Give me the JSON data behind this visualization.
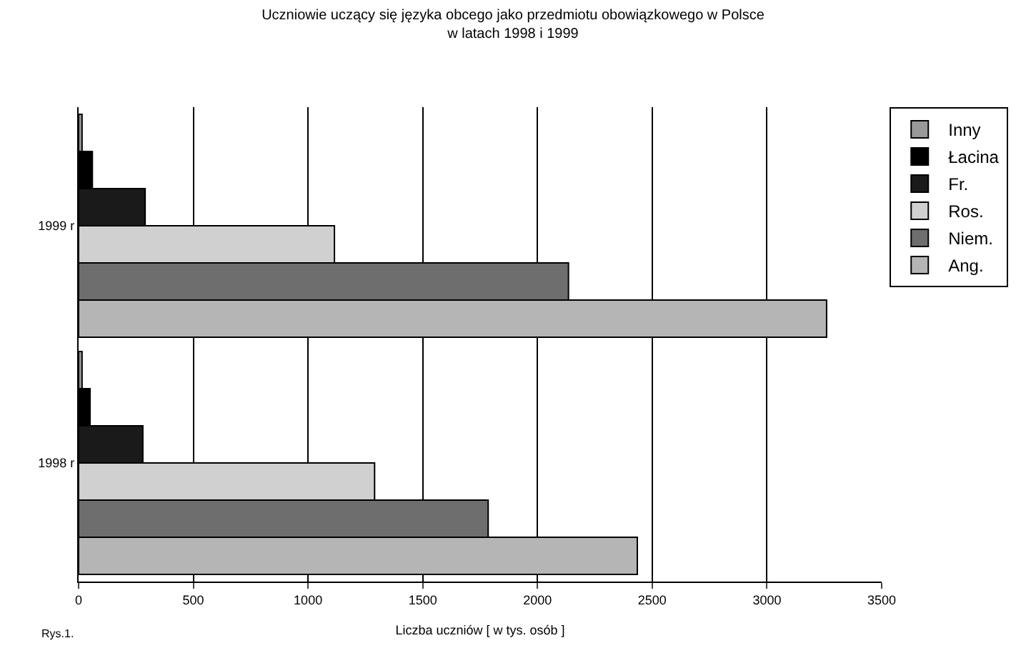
{
  "chart_data": {
    "type": "bar",
    "orientation": "horizontal",
    "title": "Uczniowie uczący się języka obcego jako przedmiotu obowiązkowego w Polsce\nw latach 1998 i 1999",
    "xlabel": "Liczba uczniów [ w tys. osób ]",
    "categories": [
      "1999 r",
      "1998 r"
    ],
    "series": [
      {
        "name": "Inny",
        "color": "#999999",
        "values": [
          15,
          15
        ]
      },
      {
        "name": "Łacina",
        "color": "#000000",
        "values": [
          60,
          50
        ]
      },
      {
        "name": "Fr.",
        "color": "#1a1a1a",
        "values": [
          290,
          280
        ]
      },
      {
        "name": "Ros.",
        "color": "#d0d0d0",
        "values": [
          1115,
          1290
        ]
      },
      {
        "name": "Niem.",
        "color": "#6e6e6e",
        "values": [
          2135,
          1785
        ]
      },
      {
        "name": "Ang.",
        "color": "#b5b5b5",
        "values": [
          3260,
          2435
        ]
      }
    ],
    "xlim": [
      0,
      3500
    ],
    "xticks": [
      0,
      500,
      1000,
      1500,
      2000,
      2500,
      3000,
      3500
    ],
    "grid": "x",
    "legend": "top right",
    "annotations": [
      "Rys.1."
    ]
  }
}
